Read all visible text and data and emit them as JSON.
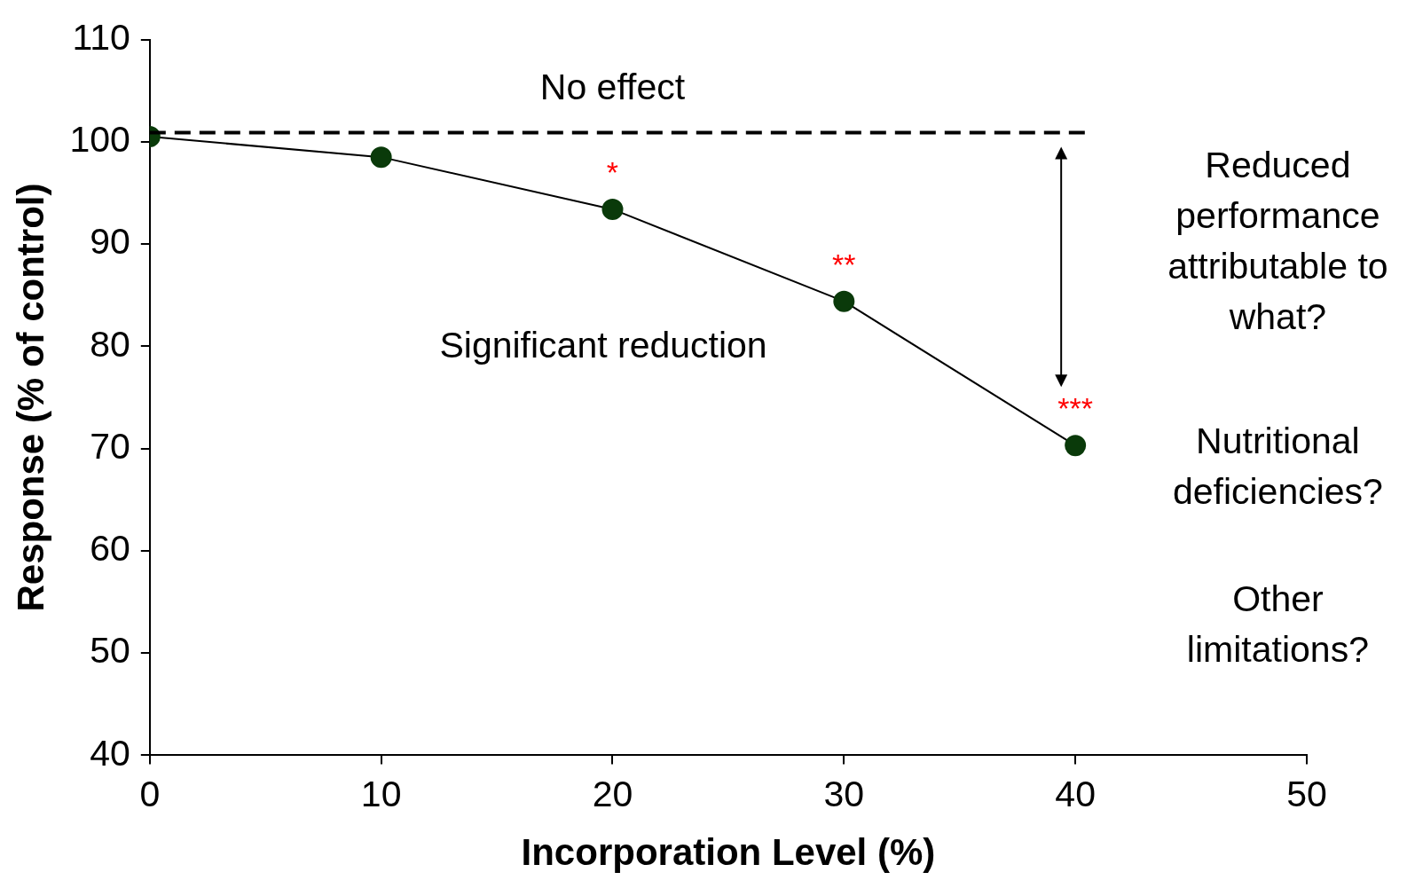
{
  "chart_data": {
    "type": "line",
    "xlabel": "Incorporation Level (%)",
    "ylabel": "Response (% of control)",
    "x": [
      0,
      10,
      20,
      30,
      40
    ],
    "series": [
      {
        "color": "#0a3a0a",
        "values": [
          100.5,
          98.5,
          93.4,
          84.4,
          70.3
        ]
      }
    ],
    "xlim": [
      0,
      50
    ],
    "xticks": [
      0,
      10,
      20,
      30,
      40,
      50
    ],
    "ylim": [
      40,
      110
    ],
    "yticks": [
      40,
      50,
      60,
      70,
      80,
      90,
      100,
      110
    ],
    "marker": "circle",
    "line_style": "solid",
    "grid": false,
    "legend": false,
    "ref_lines": [
      {
        "axis": "y",
        "value": 100.9,
        "color": "#000000",
        "line_style": "dashed"
      }
    ],
    "annotations": [
      "No effect",
      "Significant reduction",
      "Reduced\nperformance\nattributable to\nwhat?",
      "Nutritional\ndeficiencies?",
      "Other\nlimitations?",
      {
        "text": "*",
        "x": 20,
        "y": 93.4
      },
      {
        "text": "**",
        "x": 30,
        "y": 84.4
      },
      {
        "text": "***",
        "x": 40,
        "y": 70.3
      }
    ]
  }
}
